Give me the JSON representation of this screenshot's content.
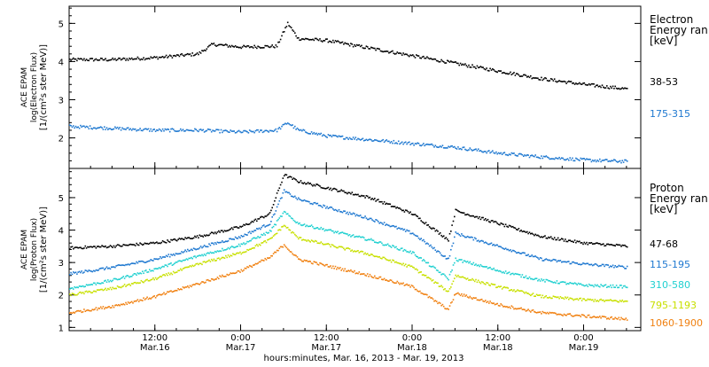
{
  "chart_data": [
    {
      "type": "scatter",
      "panel": "electron",
      "ylabel_lines": [
        "ACE EPAM",
        "log(Electron Flux)",
        "[1/(cm²s ster MeV)]"
      ],
      "ylim": [
        1.2,
        5.45
      ],
      "yticks": [
        "2",
        "3",
        "4",
        "5"
      ],
      "yticks_values": [
        2,
        3,
        4,
        5
      ],
      "legend_title_lines": [
        "Electron",
        "Energy ran",
        "[keV]"
      ],
      "series": [
        {
          "name": "38-53",
          "color": "#000000",
          "x": [
            "2013-03-16 00:00",
            "2013-03-16 06:00",
            "2013-03-16 12:00",
            "2013-03-16 18:00",
            "2013-03-16 20:00",
            "2013-03-17 00:00",
            "2013-03-17 05:00",
            "2013-03-17 06:30",
            "2013-03-17 08:00",
            "2013-03-17 12:00",
            "2013-03-17 18:00",
            "2013-03-18 00:00",
            "2013-03-18 06:00",
            "2013-03-18 12:00",
            "2013-03-18 18:00",
            "2013-03-19 00:00",
            "2013-03-19 06:00"
          ],
          "values": [
            4.05,
            4.05,
            4.1,
            4.2,
            4.45,
            4.38,
            4.4,
            5.0,
            4.6,
            4.55,
            4.35,
            4.15,
            3.95,
            3.75,
            3.55,
            3.4,
            3.28
          ]
        },
        {
          "name": "175-315",
          "color": "#1e78d0",
          "x": [
            "2013-03-16 00:00",
            "2013-03-16 06:00",
            "2013-03-16 12:00",
            "2013-03-16 18:00",
            "2013-03-17 00:00",
            "2013-03-17 05:00",
            "2013-03-17 06:30",
            "2013-03-17 08:00",
            "2013-03-17 12:00",
            "2013-03-17 18:00",
            "2013-03-18 00:00",
            "2013-03-18 06:00",
            "2013-03-18 12:00",
            "2013-03-18 18:00",
            "2013-03-19 00:00",
            "2013-03-19 06:00"
          ],
          "values": [
            2.3,
            2.25,
            2.2,
            2.2,
            2.15,
            2.2,
            2.4,
            2.2,
            2.05,
            1.95,
            1.85,
            1.75,
            1.6,
            1.5,
            1.42,
            1.38
          ]
        }
      ]
    },
    {
      "type": "scatter",
      "panel": "proton",
      "ylabel_lines": [
        "ACE EPAM",
        "log(Proton Flux)",
        "[1/(cm²s ster MeV)]"
      ],
      "ylim": [
        0.9,
        5.9
      ],
      "yticks": [
        "1",
        "2",
        "3",
        "4",
        "5"
      ],
      "yticks_values": [
        1,
        2,
        3,
        4,
        5
      ],
      "legend_title_lines": [
        "Proton",
        "Energy ran",
        "[keV]"
      ],
      "series": [
        {
          "name": "47-68",
          "color": "#000000",
          "x": [
            "2013-03-16 00:00",
            "2013-03-16 06:00",
            "2013-03-16 12:00",
            "2013-03-16 18:00",
            "2013-03-17 00:00",
            "2013-03-17 04:00",
            "2013-03-17 06:00",
            "2013-03-17 08:00",
            "2013-03-17 12:00",
            "2013-03-17 18:00",
            "2013-03-18 00:00",
            "2013-03-18 05:00",
            "2013-03-18 06:00",
            "2013-03-18 12:00",
            "2013-03-18 18:00",
            "2013-03-19 00:00",
            "2013-03-19 06:00"
          ],
          "values": [
            3.45,
            3.5,
            3.6,
            3.8,
            4.1,
            4.5,
            5.7,
            5.5,
            5.3,
            5.0,
            4.5,
            3.7,
            4.6,
            4.2,
            3.8,
            3.6,
            3.5
          ]
        },
        {
          "name": "115-195",
          "color": "#1e78d0",
          "x": [
            "2013-03-16 00:00",
            "2013-03-16 06:00",
            "2013-03-16 12:00",
            "2013-03-16 18:00",
            "2013-03-17 00:00",
            "2013-03-17 04:00",
            "2013-03-17 06:00",
            "2013-03-17 08:00",
            "2013-03-17 12:00",
            "2013-03-17 18:00",
            "2013-03-18 00:00",
            "2013-03-18 05:00",
            "2013-03-18 06:00",
            "2013-03-18 12:00",
            "2013-03-18 18:00",
            "2013-03-19 00:00",
            "2013-03-19 06:00"
          ],
          "values": [
            2.65,
            2.85,
            3.1,
            3.45,
            3.8,
            4.2,
            5.2,
            4.95,
            4.7,
            4.35,
            3.9,
            3.1,
            3.9,
            3.5,
            3.1,
            2.95,
            2.85
          ]
        },
        {
          "name": "310-580",
          "color": "#20d0d0",
          "x": [
            "2013-03-16 00:00",
            "2013-03-16 06:00",
            "2013-03-16 12:00",
            "2013-03-16 18:00",
            "2013-03-17 00:00",
            "2013-03-17 04:00",
            "2013-03-17 06:00",
            "2013-03-17 08:00",
            "2013-03-17 12:00",
            "2013-03-17 18:00",
            "2013-03-18 00:00",
            "2013-03-18 05:00",
            "2013-03-18 06:00",
            "2013-03-18 12:00",
            "2013-03-18 18:00",
            "2013-03-19 00:00",
            "2013-03-19 06:00"
          ],
          "values": [
            2.2,
            2.45,
            2.8,
            3.2,
            3.55,
            3.95,
            4.55,
            4.2,
            4.0,
            3.7,
            3.3,
            2.5,
            3.1,
            2.75,
            2.45,
            2.3,
            2.25
          ]
        },
        {
          "name": "795-1193",
          "color": "#c8e000",
          "x": [
            "2013-03-16 00:00",
            "2013-03-16 06:00",
            "2013-03-16 12:00",
            "2013-03-16 18:00",
            "2013-03-17 00:00",
            "2013-03-17 04:00",
            "2013-03-17 06:00",
            "2013-03-17 08:00",
            "2013-03-17 12:00",
            "2013-03-17 18:00",
            "2013-03-18 00:00",
            "2013-03-18 05:00",
            "2013-03-18 06:00",
            "2013-03-18 12:00",
            "2013-03-18 18:00",
            "2013-03-19 00:00",
            "2013-03-19 06:00"
          ],
          "values": [
            2.0,
            2.2,
            2.5,
            2.95,
            3.3,
            3.7,
            4.15,
            3.75,
            3.55,
            3.25,
            2.85,
            2.1,
            2.6,
            2.25,
            1.95,
            1.85,
            1.8
          ]
        },
        {
          "name": "1060-1900",
          "color": "#f08010",
          "x": [
            "2013-03-16 00:00",
            "2013-03-16 06:00",
            "2013-03-16 12:00",
            "2013-03-16 18:00",
            "2013-03-17 00:00",
            "2013-03-17 04:00",
            "2013-03-17 06:00",
            "2013-03-17 08:00",
            "2013-03-17 12:00",
            "2013-03-17 18:00",
            "2013-03-18 00:00",
            "2013-03-18 05:00",
            "2013-03-18 06:00",
            "2013-03-18 12:00",
            "2013-03-18 18:00",
            "2013-03-19 00:00",
            "2013-03-19 06:00"
          ],
          "values": [
            1.45,
            1.65,
            1.95,
            2.35,
            2.75,
            3.15,
            3.55,
            3.1,
            2.9,
            2.6,
            2.25,
            1.55,
            2.05,
            1.7,
            1.45,
            1.35,
            1.25
          ]
        }
      ]
    }
  ],
  "x_axis": {
    "xlim": [
      "2013-03-16 00:00",
      "2013-03-19 08:00"
    ],
    "ticks": [
      {
        "time": "2013-03-16 12:00",
        "label": "12:00",
        "sub": "Mar.16"
      },
      {
        "time": "2013-03-17 00:00",
        "label": "0:00",
        "sub": "Mar.17"
      },
      {
        "time": "2013-03-17 12:00",
        "label": "12:00",
        "sub": "Mar.17"
      },
      {
        "time": "2013-03-18 00:00",
        "label": "0:00",
        "sub": "Mar.18"
      },
      {
        "time": "2013-03-18 12:00",
        "label": "12:00",
        "sub": "Mar.18"
      },
      {
        "time": "2013-03-19 00:00",
        "label": "0:00",
        "sub": "Mar.19"
      }
    ],
    "title": "hours:minutes, Mar. 16, 2013 - Mar. 19, 2013"
  }
}
